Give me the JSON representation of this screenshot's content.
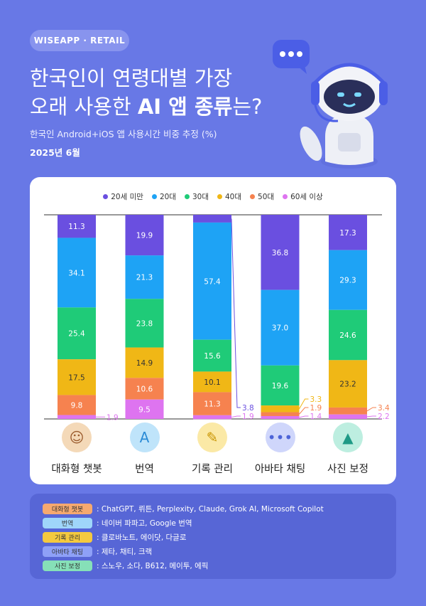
{
  "brand": "WISEAPP · RETAIL",
  "title_line1": "한국인이 연령대별 가장",
  "title_line2_a": "오래 사용한 ",
  "title_line2_b": "AI 앱 종류",
  "title_line2_c": "는?",
  "subtitle": "한국인 Android+iOS 앱 사용시간 비중 추정 (%)",
  "date": "2025년 6월",
  "chart_data": {
    "type": "bar",
    "stacked": true,
    "categories": [
      "대화형 챗봇",
      "번역",
      "기록 관리",
      "아바타 채팅",
      "사진 보정"
    ],
    "series": [
      {
        "name": "20세 미만",
        "color": "#6a4fe0",
        "values": [
          11.3,
          19.9,
          3.8,
          36.8,
          17.3
        ]
      },
      {
        "name": "20대",
        "color": "#1ea3f5",
        "values": [
          34.1,
          21.3,
          57.4,
          37.0,
          29.3
        ]
      },
      {
        "name": "30대",
        "color": "#1fcb78",
        "values": [
          25.4,
          23.8,
          15.6,
          19.6,
          24.6
        ]
      },
      {
        "name": "40대",
        "color": "#f0b716",
        "values": [
          17.5,
          14.9,
          10.1,
          3.3,
          23.2
        ]
      },
      {
        "name": "50대",
        "color": "#f6824f",
        "values": [
          9.8,
          10.6,
          11.3,
          1.9,
          3.4
        ]
      },
      {
        "name": "60세 이상",
        "color": "#de74f0",
        "values": [
          1.9,
          9.5,
          1.9,
          1.4,
          2.2
        ]
      }
    ],
    "ylim": [
      0,
      100
    ]
  },
  "categories_ui": [
    {
      "label": "대화형 챗봇",
      "icon": "chatbot-face-icon",
      "glyph": "☺",
      "bg": "#f4d9b8",
      "fg": "#9a5a2c"
    },
    {
      "label": "번역",
      "icon": "translate-icon",
      "glyph": "A",
      "bg": "#bfe4fa",
      "fg": "#2b8bd6"
    },
    {
      "label": "기록 관리",
      "icon": "pencil-icon",
      "glyph": "✎",
      "bg": "#fbe9a6",
      "fg": "#c99400"
    },
    {
      "label": "아바타 채팅",
      "icon": "avatar-chat-icon",
      "glyph": "•••",
      "bg": "#cfd6fb",
      "fg": "#4d64d8"
    },
    {
      "label": "사진 보정",
      "icon": "photo-edit-icon",
      "glyph": "▲",
      "bg": "#bdeee0",
      "fg": "#1f9a86"
    }
  ],
  "notes": [
    {
      "tag": "대화형 챗봇",
      "color": "#f6a96f",
      "text": ": ChatGPT, 뤼튼, Perplexity, Claude, Grok AI, Microsoft Copilot"
    },
    {
      "tag": "번역",
      "color": "#9fd6fa",
      "text": ": 네이버 파파고, Google 번역"
    },
    {
      "tag": "기록 관리",
      "color": "#f4c93f",
      "text": ": 클로바노트, 에이닷, 다글로"
    },
    {
      "tag": "아바타 채팅",
      "color": "#8ea0f7",
      "text": ": 제타, 채티, 크랙"
    },
    {
      "tag": "사진 보정",
      "color": "#86e0b8",
      "text": ": 스노우, 소다, B612, 메이투, 에픽"
    }
  ]
}
